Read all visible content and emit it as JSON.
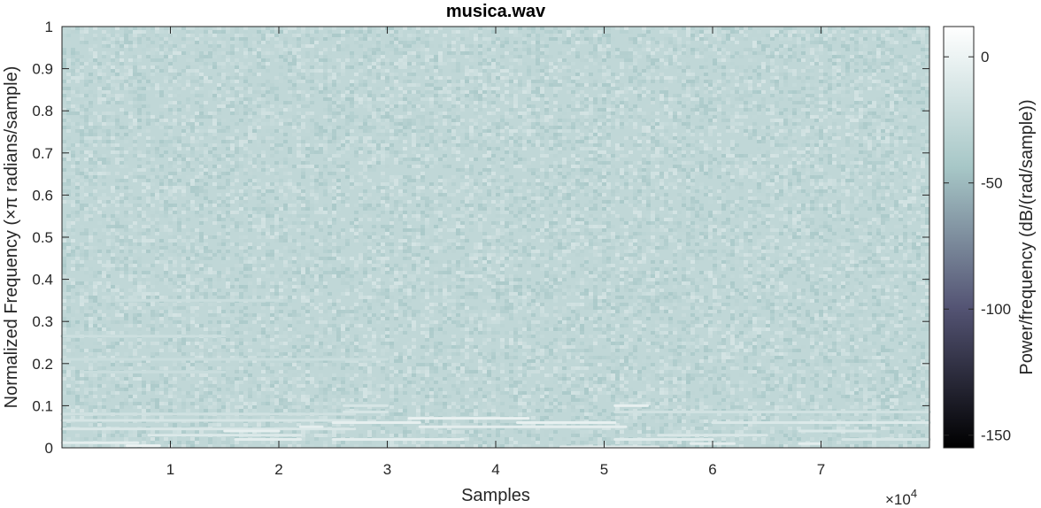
{
  "chart_data": {
    "type": "heatmap",
    "title": "musica.wav",
    "xlabel": "Samples",
    "ylabel": "Normalized Frequency (×π radians/sample)",
    "x_exponent_label": "×10",
    "x_exponent_power": "4",
    "xlim": [
      0,
      80000
    ],
    "ylim": [
      0,
      1
    ],
    "xticks": [
      10000,
      20000,
      30000,
      40000,
      50000,
      60000,
      70000
    ],
    "xtick_labels": [
      "1",
      "2",
      "3",
      "4",
      "5",
      "6",
      "7"
    ],
    "yticks": [
      0,
      0.1,
      0.2,
      0.3,
      0.4,
      0.5,
      0.6,
      0.7,
      0.8,
      0.9,
      1
    ],
    "ytick_labels": [
      "0",
      "0.1",
      "0.2",
      "0.3",
      "0.4",
      "0.5",
      "0.6",
      "0.7",
      "0.8",
      "0.9",
      "1"
    ],
    "colorbar": {
      "label": "Power/frequency (dB/(rad/sample))",
      "range": [
        -155,
        12
      ],
      "ticks": [
        0,
        -50,
        -100,
        -150
      ],
      "tick_labels": [
        "0",
        "-50",
        "-100",
        "-150"
      ],
      "colormap": "bone",
      "colormap_stops": [
        "#000000",
        "#545474",
        "#a7c7c7",
        "#ffffff"
      ]
    },
    "background_level_db": -28,
    "harmonic_lines": [
      {
        "x": [
          0,
          7000
        ],
        "y": 0.012,
        "db": -5
      },
      {
        "x": [
          6000,
          9000
        ],
        "y": 0.005,
        "db": 0
      },
      {
        "x": [
          0,
          27000
        ],
        "y": 0.08,
        "db": -18
      },
      {
        "x": [
          0,
          27000
        ],
        "y": 0.065,
        "db": -14
      },
      {
        "x": [
          0,
          27000
        ],
        "y": 0.045,
        "db": -12
      },
      {
        "x": [
          8000,
          22000
        ],
        "y": 0.03,
        "db": -10
      },
      {
        "x": [
          16000,
          22000
        ],
        "y": 0.02,
        "db": -6
      },
      {
        "x": [
          15000,
          20000
        ],
        "y": 0.04,
        "db": -4
      },
      {
        "x": [
          22000,
          24000
        ],
        "y": 0.05,
        "db": -5
      },
      {
        "x": [
          25000,
          33000
        ],
        "y": 0.06,
        "db": -4
      },
      {
        "x": [
          25000,
          37000
        ],
        "y": 0.02,
        "db": -6
      },
      {
        "x": [
          26000,
          30000
        ],
        "y": 0.085,
        "db": -14
      },
      {
        "x": [
          26000,
          30000
        ],
        "y": 0.1,
        "db": -14
      },
      {
        "x": [
          32000,
          43000
        ],
        "y": 0.07,
        "db": -2
      },
      {
        "x": [
          33000,
          52000
        ],
        "y": 0.05,
        "db": -6
      },
      {
        "x": [
          42000,
          51000
        ],
        "y": 0.06,
        "db": -3
      },
      {
        "x": [
          51000,
          54000
        ],
        "y": 0.1,
        "db": -3
      },
      {
        "x": [
          46000,
          55000
        ],
        "y": 0.002,
        "db": -6
      },
      {
        "x": [
          51000,
          60000
        ],
        "y": 0.02,
        "db": -8
      },
      {
        "x": [
          51000,
          80000
        ],
        "y": 0.085,
        "db": -18
      },
      {
        "x": [
          55000,
          65000
        ],
        "y": 0.03,
        "db": -12
      },
      {
        "x": [
          58000,
          62000
        ],
        "y": 0.01,
        "db": -6
      },
      {
        "x": [
          60000,
          68000
        ],
        "y": 0.06,
        "db": -12
      },
      {
        "x": [
          68000,
          80000
        ],
        "y": 0.06,
        "db": -10
      },
      {
        "x": [
          68000,
          75000
        ],
        "y": 0.04,
        "db": -12
      },
      {
        "x": [
          68000,
          70000
        ],
        "y": 0.01,
        "db": -6
      },
      {
        "x": [
          72000,
          80000
        ],
        "y": 0.02,
        "db": -14
      },
      {
        "x": [
          0,
          15000
        ],
        "y": 0.265,
        "db": -20
      },
      {
        "x": [
          5000,
          20000
        ],
        "y": 0.35,
        "db": -22
      },
      {
        "x": [
          0,
          30000
        ],
        "y": 0.21,
        "db": -22
      },
      {
        "x": [
          2000,
          15000
        ],
        "y": 0.18,
        "db": -22
      }
    ]
  }
}
